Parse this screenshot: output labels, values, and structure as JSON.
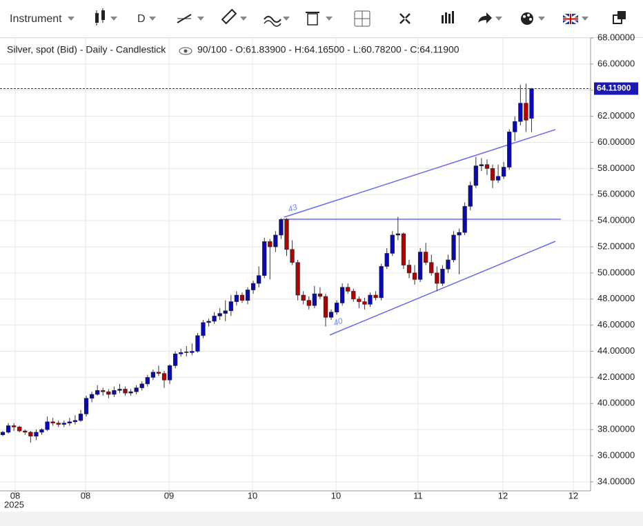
{
  "toolbar": {
    "instrument": "Instrument",
    "period": "D"
  },
  "chart_data": {
    "type": "candlestick",
    "title": "Silver, spot (Bid) - Daily - Candlestick",
    "subtitle": "90/100 - O:61.83900 - H:64.16500 - L:60.78200 - C:64.11900",
    "up_color": "#0a0ab4",
    "down_color": "#b40000",
    "grid": true,
    "ylim": [
      33.31,
      68.0
    ],
    "yticks": [
      {
        "value": 34,
        "label": "34.00000"
      },
      {
        "value": 36,
        "label": "36.00000"
      },
      {
        "value": 38,
        "label": "38.00000"
      },
      {
        "value": 40,
        "label": "40.00000"
      },
      {
        "value": 42,
        "label": "42.00000"
      },
      {
        "value": 44,
        "label": "44.00000"
      },
      {
        "value": 46,
        "label": "46.00000"
      },
      {
        "value": 48,
        "label": "48.00000"
      },
      {
        "value": 50,
        "label": "50.00000"
      },
      {
        "value": 52,
        "label": "52.00000"
      },
      {
        "value": 54,
        "label": "54.00000"
      },
      {
        "value": 56,
        "label": "56.00000"
      },
      {
        "value": 58,
        "label": "58.00000"
      },
      {
        "value": 60,
        "label": "60.00000"
      },
      {
        "value": 62,
        "label": "62.00000"
      },
      {
        "value": 64,
        "label": "64.00000"
      },
      {
        "value": 66,
        "label": "66.00000"
      },
      {
        "value": 68,
        "label": "68.00000"
      }
    ],
    "xlim": [
      -0.5,
      105.6
    ],
    "xticks": [
      {
        "value": 2.23,
        "label": "08"
      },
      {
        "value": 14.87,
        "label": "08"
      },
      {
        "value": 29.87,
        "label": "09"
      },
      {
        "value": 44.86,
        "label": "10"
      },
      {
        "value": 59.86,
        "label": "10"
      },
      {
        "value": 74.6,
        "label": "11"
      },
      {
        "value": 89.86,
        "label": "12"
      },
      {
        "value": 102.5,
        "label": "12"
      }
    ],
    "year_label": "2025",
    "last_price": {
      "value": 64.119,
      "label": "64.11900"
    },
    "annotations": [
      "43",
      "40"
    ],
    "ohlc": [
      [
        37.6,
        37.9,
        37.5,
        37.8
      ],
      [
        37.8,
        38.5,
        37.7,
        38.3
      ],
      [
        38.3,
        38.5,
        37.9,
        38.2
      ],
      [
        38.2,
        38.3,
        37.8,
        37.9
      ],
      [
        37.9,
        38.0,
        37.6,
        37.8
      ],
      [
        37.8,
        37.9,
        37.0,
        37.5
      ],
      [
        37.5,
        38.0,
        37.2,
        37.8
      ],
      [
        37.8,
        38.1,
        37.6,
        38.0
      ],
      [
        38.0,
        39.0,
        37.9,
        38.6
      ],
      [
        38.6,
        38.9,
        38.3,
        38.5
      ],
      [
        38.5,
        38.7,
        38.2,
        38.4
      ],
      [
        38.4,
        38.7,
        38.2,
        38.5
      ],
      [
        38.5,
        38.9,
        38.3,
        38.6
      ],
      [
        38.6,
        39.1,
        38.4,
        38.7
      ],
      [
        38.7,
        39.5,
        38.6,
        39.2
      ],
      [
        39.2,
        40.6,
        39.0,
        40.4
      ],
      [
        40.4,
        40.9,
        40.1,
        40.7
      ],
      [
        40.7,
        41.4,
        40.6,
        41.0
      ],
      [
        41.0,
        41.2,
        40.6,
        40.9
      ],
      [
        40.9,
        41.1,
        40.4,
        40.7
      ],
      [
        40.7,
        41.3,
        40.5,
        41.0
      ],
      [
        41.0,
        41.5,
        40.8,
        41.1
      ],
      [
        41.1,
        41.3,
        40.6,
        40.8
      ],
      [
        40.8,
        41.1,
        40.6,
        40.9
      ],
      [
        40.9,
        41.4,
        40.7,
        41.2
      ],
      [
        41.2,
        41.7,
        41.0,
        41.5
      ],
      [
        41.5,
        42.2,
        41.3,
        42.0
      ],
      [
        42.0,
        42.6,
        41.8,
        42.4
      ],
      [
        42.4,
        42.9,
        42.1,
        42.3
      ],
      [
        42.3,
        42.5,
        41.2,
        41.8
      ],
      [
        41.8,
        43.0,
        41.5,
        42.9
      ],
      [
        42.9,
        44.0,
        42.7,
        43.8
      ],
      [
        43.8,
        44.2,
        43.6,
        43.9
      ],
      [
        43.9,
        44.4,
        43.6,
        43.95
      ],
      [
        43.9,
        44.6,
        43.7,
        44.0
      ],
      [
        44.0,
        45.4,
        43.9,
        45.2
      ],
      [
        45.2,
        46.4,
        45.0,
        46.2
      ],
      [
        46.2,
        46.5,
        45.9,
        46.3
      ],
      [
        46.3,
        47.0,
        46.1,
        46.7
      ],
      [
        46.7,
        47.3,
        46.4,
        46.9
      ],
      [
        46.9,
        47.9,
        46.3,
        47.1
      ],
      [
        47.1,
        48.3,
        46.7,
        47.8
      ],
      [
        47.8,
        48.6,
        47.5,
        48.3
      ],
      [
        48.3,
        48.5,
        47.7,
        47.9
      ],
      [
        47.9,
        48.9,
        47.6,
        48.7
      ],
      [
        48.7,
        49.4,
        48.4,
        49.2
      ],
      [
        49.2,
        50.5,
        48.9,
        49.8
      ],
      [
        49.8,
        52.7,
        49.6,
        52.4
      ],
      [
        52.4,
        52.6,
        49.5,
        52.0
      ],
      [
        52.0,
        53.2,
        51.6,
        52.9
      ],
      [
        52.9,
        54.2,
        52.6,
        54.1
      ],
      [
        54.1,
        54.2,
        51.3,
        51.8
      ],
      [
        51.8,
        52.5,
        50.6,
        50.8
      ],
      [
        50.8,
        51.0,
        47.9,
        48.3
      ],
      [
        48.3,
        48.6,
        47.6,
        47.9
      ],
      [
        47.9,
        48.2,
        47.2,
        47.5
      ],
      [
        47.5,
        49.0,
        47.3,
        48.4
      ],
      [
        48.4,
        48.9,
        48.0,
        48.2
      ],
      [
        48.2,
        48.4,
        45.9,
        46.6
      ],
      [
        46.6,
        47.2,
        46.4,
        47.0
      ],
      [
        47.0,
        47.9,
        46.8,
        47.7
      ],
      [
        47.7,
        49.2,
        47.5,
        48.9
      ],
      [
        48.9,
        49.2,
        48.4,
        48.6
      ],
      [
        48.6,
        48.8,
        47.8,
        48.0
      ],
      [
        48.0,
        48.2,
        47.3,
        47.8
      ],
      [
        47.8,
        48.1,
        47.2,
        47.6
      ],
      [
        47.6,
        48.5,
        47.4,
        48.3
      ],
      [
        48.3,
        48.6,
        47.9,
        48.1
      ],
      [
        48.1,
        50.7,
        47.9,
        50.5
      ],
      [
        50.5,
        51.9,
        50.3,
        51.5
      ],
      [
        51.5,
        53.2,
        51.3,
        52.9
      ],
      [
        52.9,
        54.3,
        52.5,
        53.0
      ],
      [
        53.0,
        53.1,
        50.3,
        50.6
      ],
      [
        50.6,
        51.0,
        49.6,
        50.0
      ],
      [
        50.0,
        50.6,
        49.1,
        49.5
      ],
      [
        49.5,
        51.9,
        49.3,
        51.6
      ],
      [
        51.6,
        52.3,
        50.6,
        50.8
      ],
      [
        50.8,
        51.4,
        49.8,
        50.0
      ],
      [
        50.0,
        50.5,
        48.6,
        49.2
      ],
      [
        49.2,
        50.6,
        49.0,
        50.3
      ],
      [
        50.3,
        51.4,
        50.0,
        51.0
      ],
      [
        51.0,
        53.2,
        50.8,
        52.9
      ],
      [
        52.9,
        53.4,
        49.9,
        53.1
      ],
      [
        53.1,
        55.4,
        52.9,
        55.1
      ],
      [
        55.1,
        57.0,
        54.8,
        56.7
      ],
      [
        56.7,
        58.9,
        56.5,
        58.2
      ],
      [
        58.2,
        58.8,
        57.8,
        58.3
      ],
      [
        58.3,
        58.7,
        57.5,
        58.0
      ],
      [
        58.0,
        58.3,
        56.5,
        57.1
      ],
      [
        57.1,
        58.3,
        56.9,
        57.4
      ],
      [
        57.4,
        58.5,
        57.2,
        58.1
      ],
      [
        58.1,
        61.0,
        57.9,
        60.8
      ],
      [
        60.8,
        62.0,
        60.1,
        61.6
      ],
      [
        61.6,
        64.4,
        61.3,
        63.0
      ],
      [
        63.0,
        64.5,
        60.8,
        61.7
      ],
      [
        61.839,
        64.165,
        60.782,
        64.119
      ]
    ]
  }
}
